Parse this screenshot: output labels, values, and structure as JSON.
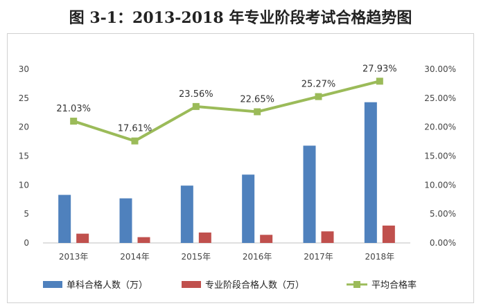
{
  "title": "图 3-1：2013-2018 年专业阶段考试合格趋势图",
  "chart_data": {
    "type": "bar",
    "categories": [
      "2013年",
      "2014年",
      "2015年",
      "2016年",
      "2017年",
      "2018年"
    ],
    "series": [
      {
        "name": "单科合格人数（万）",
        "type": "bar",
        "axis": "left",
        "color": "#4f81bd",
        "values": [
          8.3,
          7.7,
          9.9,
          11.8,
          16.8,
          24.3
        ]
      },
      {
        "name": "专业阶段合格人数（万）",
        "type": "bar",
        "axis": "left",
        "color": "#c0504d",
        "values": [
          1.6,
          1.0,
          1.8,
          1.4,
          2.0,
          3.0
        ]
      },
      {
        "name": "平均合格率",
        "type": "line",
        "axis": "right",
        "color": "#9bbb59",
        "values": [
          21.03,
          17.61,
          23.56,
          22.65,
          25.27,
          27.93
        ],
        "labels": [
          "21.03%",
          "17.61%",
          "23.56%",
          "22.65%",
          "25.27%",
          "27.93%"
        ]
      }
    ],
    "yleft": {
      "min": 0,
      "max": 30,
      "ticks": [
        "0",
        "5",
        "10",
        "15",
        "20",
        "25",
        "30"
      ]
    },
    "yright": {
      "min": 0,
      "max": 30,
      "ticks": [
        "0.00%",
        "5.00%",
        "10.00%",
        "15.00%",
        "20.00%",
        "25.00%",
        "30.00%"
      ]
    },
    "grid": false,
    "legend_position": "bottom"
  }
}
